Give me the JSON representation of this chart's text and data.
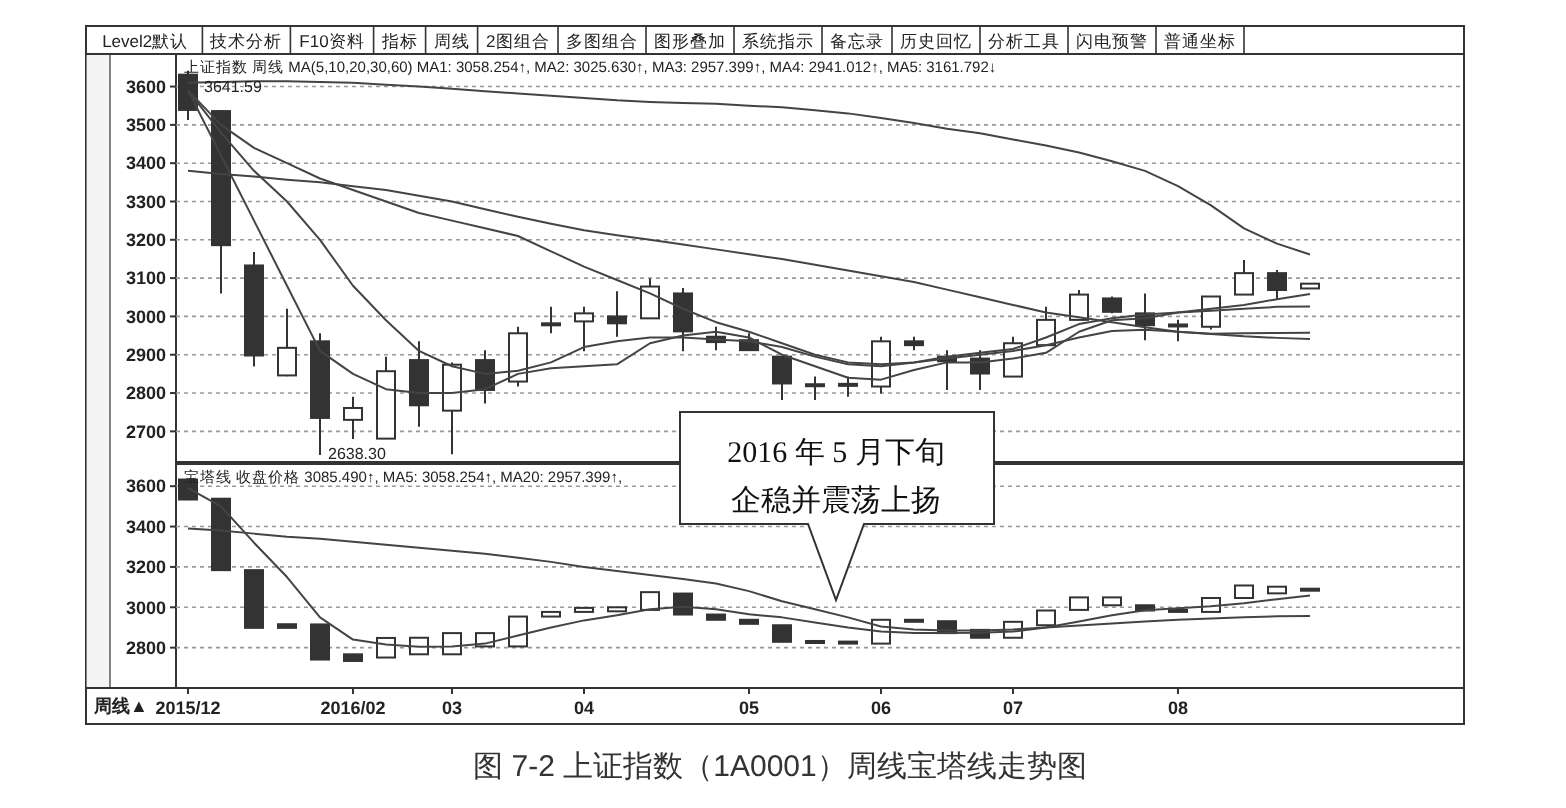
{
  "chart_data": [
    {
      "type": "candlestick",
      "categories": [
        null,
        null,
        null,
        null,
        null,
        null,
        null,
        null,
        null,
        null,
        null,
        null,
        null,
        null,
        null,
        null,
        null,
        null,
        null,
        null,
        null,
        null,
        null,
        null,
        null,
        null,
        null,
        null,
        null,
        null,
        null,
        null,
        null,
        null,
        null
      ],
      "ohlc": [
        [
          3631,
          3641.59,
          3513,
          3539
        ],
        [
          3536,
          3539,
          3060,
          3186
        ],
        [
          3133,
          3168,
          2869,
          2898
        ],
        [
          2846,
          3020,
          2844,
          2918
        ],
        [
          2935,
          2956,
          2638.3,
          2735
        ],
        [
          2730,
          2790,
          2680,
          2761
        ],
        [
          2681,
          2895,
          2680,
          2857
        ],
        [
          2886,
          2935,
          2712,
          2768
        ],
        [
          2754,
          2880,
          2640,
          2874
        ],
        [
          2886,
          2912,
          2773,
          2808
        ],
        [
          2830,
          2973,
          2817,
          2956
        ],
        [
          2978,
          3025,
          2956,
          2982
        ],
        [
          2987,
          3025,
          2909,
          3008
        ],
        [
          3000,
          3066,
          2947,
          2982
        ],
        [
          2995,
          3099,
          2995,
          3078
        ],
        [
          3060,
          3074,
          2909,
          2961
        ],
        [
          2947,
          2973,
          2912,
          2933
        ],
        [
          2938,
          2956,
          2910,
          2912
        ],
        [
          2895,
          2895,
          2782,
          2825
        ],
        [
          2821,
          2843,
          2782,
          2823
        ],
        [
          2822,
          2843,
          2790,
          2824
        ],
        [
          2817,
          2947,
          2799,
          2935
        ],
        [
          2935,
          2947,
          2912,
          2925
        ],
        [
          2895,
          2912,
          2808,
          2883
        ],
        [
          2890,
          2912,
          2808,
          2851
        ],
        [
          2843,
          2947,
          2843,
          2930
        ],
        [
          2925,
          3025,
          2925,
          2991
        ],
        [
          2991,
          3069,
          2991,
          3057
        ],
        [
          3047,
          3052,
          3008,
          3012
        ],
        [
          3008,
          3060,
          2938,
          2977
        ],
        [
          2975,
          2991,
          2935,
          2979
        ],
        [
          2973,
          3052,
          2966,
          3052
        ],
        [
          3057,
          3147,
          3057,
          3113
        ],
        [
          3113,
          3121,
          3043,
          3069
        ],
        [
          3073,
          3086,
          3073,
          3085.49
        ]
      ],
      "series": [
        {
          "type": "line",
          "color": "#444444",
          "values": [
            3590,
            3420,
            3250,
            3080,
            2910,
            2850,
            2810,
            2800,
            2800,
            2810,
            2850,
            2865,
            2870,
            2875,
            2930,
            2950,
            2960,
            2945,
            2900,
            2870,
            2840,
            2835,
            2860,
            2880,
            2880,
            2890,
            2905,
            2960,
            2990,
            2995,
            3010,
            3020,
            3030,
            3045,
            3058.254
          ]
        },
        {
          "type": "line",
          "color": "#444444",
          "values": [
            3590,
            3480,
            3380,
            3300,
            3200,
            3080,
            2990,
            2910,
            2870,
            2850,
            2858,
            2880,
            2920,
            2935,
            2945,
            2945,
            2940,
            2935,
            2920,
            2895,
            2875,
            2870,
            2880,
            2895,
            2905,
            2915,
            2945,
            2980,
            2995,
            3005,
            3010,
            3015,
            3020,
            3025,
            3025.63
          ]
        },
        {
          "type": "line",
          "color": "#444444",
          "values": [
            3590,
            3500,
            3440,
            3400,
            3360,
            3330,
            3300,
            3270,
            3250,
            3230,
            3210,
            3170,
            3130,
            3095,
            3060,
            3020,
            2985,
            2960,
            2930,
            2900,
            2880,
            2875,
            2880,
            2890,
            2900,
            2910,
            2925,
            2945,
            2962,
            2965,
            2960,
            2955,
            2956,
            2957,
            2957.399
          ]
        },
        {
          "type": "line",
          "color": "#444444",
          "values": [
            3380,
            3372,
            3365,
            3357,
            3350,
            3340,
            3330,
            3315,
            3300,
            3280,
            3260,
            3242,
            3225,
            3212,
            3200,
            3188,
            3175,
            3162,
            3150,
            3135,
            3120,
            3105,
            3090,
            3070,
            3050,
            3030,
            3010,
            2998,
            2985,
            2972,
            2960,
            2954,
            2948,
            2944,
            2941.012
          ]
        },
        {
          "type": "line",
          "color": "#444444",
          "values": [
            3610,
            3612,
            3614,
            3614,
            3612,
            3610,
            3605,
            3600,
            3594,
            3588,
            3582,
            3576,
            3570,
            3564,
            3560,
            3557,
            3555,
            3550,
            3546,
            3538,
            3530,
            3518,
            3505,
            3490,
            3478,
            3462,
            3446,
            3428,
            3405,
            3380,
            3340,
            3290,
            3230,
            3190,
            3161.792
          ]
        }
      ],
      "ylim": [
        2620,
        3685
      ],
      "yticks": [
        2700,
        2800,
        2900,
        3000,
        3100,
        3200,
        3300,
        3400,
        3500,
        3600
      ],
      "grid": "y",
      "tick_labels": "y",
      "annotations": [
        "上证指数 周线 MA(5,10,20,30,60) MA1: 3058.254↑, MA2: 3025.630↑, MA3: 2957.399↑, MA4: 2941.012↑, MA5: 3161.792↓",
        "3641.59",
        "2638.30",
        "Level2默认",
        "技术分析",
        "F10资料",
        "指标",
        "周线",
        "2图组合",
        "多图组合",
        "图形叠加",
        "系统指示",
        "备忘录",
        "历史回忆",
        "分析工具",
        "闪电预警",
        "普通坐标"
      ]
    },
    {
      "type": "candlestick",
      "categories": [
        "2015/12",
        null,
        null,
        null,
        null,
        "2016/02",
        null,
        null,
        "03",
        null,
        null,
        null,
        "04",
        null,
        null,
        null,
        null,
        "05",
        null,
        null,
        null,
        "06",
        null,
        null,
        null,
        "07",
        null,
        null,
        null,
        null,
        "08",
        null,
        null,
        null,
        null
      ],
      "ohlc": [
        [
          3633,
          3633,
          3534,
          3534
        ],
        [
          3538,
          3538,
          3184,
          3184
        ],
        [
          3184,
          3184,
          2898,
          2898
        ],
        [
          2916,
          2916,
          2898,
          2898
        ],
        [
          2915,
          2915,
          2741,
          2741
        ],
        [
          2767,
          2767,
          2734,
          2734
        ],
        [
          2751,
          2848,
          2751,
          2848
        ],
        [
          2767,
          2849,
          2767,
          2849
        ],
        [
          2767,
          2872,
          2767,
          2872
        ],
        [
          2806,
          2872,
          2806,
          2872
        ],
        [
          2806,
          2954,
          2806,
          2954
        ],
        [
          2954,
          2977,
          2954,
          2977
        ],
        [
          2977,
          2997,
          2977,
          2997
        ],
        [
          2980,
          3000,
          2980,
          3000
        ],
        [
          2987,
          3075,
          2987,
          3075
        ],
        [
          3068,
          3068,
          2964,
          2964
        ],
        [
          2964,
          2964,
          2938,
          2938
        ],
        [
          2938,
          2938,
          2918,
          2918
        ],
        [
          2911,
          2911,
          2829,
          2829
        ],
        [
          2833,
          2833,
          2823,
          2823
        ],
        [
          2830,
          2830,
          2820,
          2820
        ],
        [
          2820,
          2938,
          2820,
          2938
        ],
        [
          2938,
          2938,
          2928,
          2928
        ],
        [
          2931,
          2931,
          2872,
          2872
        ],
        [
          2888,
          2888,
          2849,
          2849
        ],
        [
          2849,
          2928,
          2849,
          2928
        ],
        [
          2911,
          2984,
          2911,
          2984
        ],
        [
          2987,
          3049,
          2987,
          3049
        ],
        [
          3010,
          3049,
          3010,
          3049
        ],
        [
          3010,
          3010,
          2984,
          2984
        ],
        [
          2987,
          2987,
          2977,
          2977
        ],
        [
          2977,
          3046,
          2977,
          3046
        ],
        [
          3046,
          3108,
          3046,
          3108
        ],
        [
          3069,
          3102,
          3069,
          3102
        ],
        [
          3092,
          3092,
          3085.49,
          3085.49
        ]
      ],
      "series": [
        {
          "type": "line",
          "color": "#444444",
          "values": [
            3590,
            3500,
            3320,
            3150,
            2950,
            2840,
            2815,
            2805,
            2806,
            2820,
            2860,
            2900,
            2935,
            2960,
            2990,
            3003,
            2990,
            2965,
            2950,
            2925,
            2900,
            2880,
            2872,
            2872,
            2874,
            2880,
            2900,
            2930,
            2960,
            2985,
            2995,
            3005,
            3020,
            3040,
            3058.254
          ]
        },
        {
          "type": "line",
          "color": "#444444",
          "values": [
            3390,
            3380,
            3365,
            3350,
            3340,
            3325,
            3310,
            3295,
            3280,
            3265,
            3245,
            3225,
            3200,
            3180,
            3160,
            3140,
            3118,
            3080,
            3030,
            2990,
            2950,
            2905,
            2890,
            2885,
            2885,
            2890,
            2900,
            2910,
            2920,
            2930,
            2938,
            2945,
            2950,
            2955,
            2957.399
          ]
        }
      ],
      "ylim": [
        2600,
        3710
      ],
      "yticks": [
        2800,
        3000,
        3200,
        3400,
        3600
      ],
      "grid": "y",
      "annotations": [
        "宝塔线 收盘价格 3085.490↑, MA5: 3058.254↑, MA20: 2957.399↑,",
        "周线▲",
        "2016 年 5 月下旬",
        "企稳并震荡上扬",
        "图 7-2 上证指数（1A0001）周线宝塔线走势图"
      ]
    }
  ]
}
